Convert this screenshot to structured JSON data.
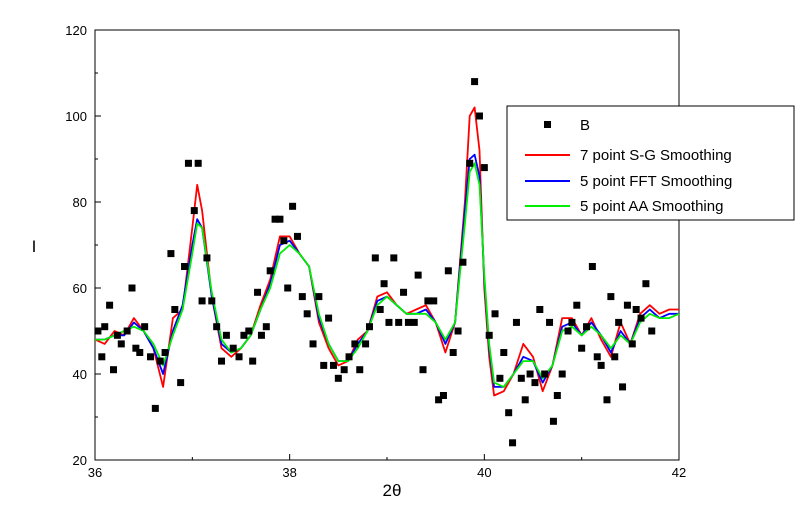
{
  "chart_data": {
    "type": "line",
    "title": "",
    "xlabel": "2θ",
    "ylabel": "I",
    "xlim": [
      36,
      42
    ],
    "ylim": [
      20,
      120
    ],
    "xticks": [
      36,
      38,
      40,
      42
    ],
    "yticks": [
      20,
      40,
      60,
      80,
      100,
      120
    ],
    "grid": false,
    "legend_position": "top-right",
    "scatter": {
      "name": "B",
      "color": "#000000",
      "marker": "square",
      "points": [
        [
          36.03,
          50
        ],
        [
          36.07,
          44
        ],
        [
          36.1,
          51
        ],
        [
          36.15,
          56
        ],
        [
          36.19,
          41
        ],
        [
          36.23,
          49
        ],
        [
          36.27,
          47
        ],
        [
          36.33,
          50
        ],
        [
          36.38,
          60
        ],
        [
          36.42,
          46
        ],
        [
          36.46,
          45
        ],
        [
          36.51,
          51
        ],
        [
          36.57,
          44
        ],
        [
          36.62,
          32
        ],
        [
          36.67,
          43
        ],
        [
          36.72,
          45
        ],
        [
          36.78,
          68
        ],
        [
          36.82,
          55
        ],
        [
          36.88,
          38
        ],
        [
          36.92,
          65
        ],
        [
          36.96,
          89
        ],
        [
          37.02,
          78
        ],
        [
          37.06,
          89
        ],
        [
          37.1,
          57
        ],
        [
          37.15,
          67
        ],
        [
          37.2,
          57
        ],
        [
          37.25,
          51
        ],
        [
          37.3,
          43
        ],
        [
          37.35,
          49
        ],
        [
          37.42,
          46
        ],
        [
          37.48,
          44
        ],
        [
          37.53,
          49
        ],
        [
          37.58,
          50
        ],
        [
          37.62,
          43
        ],
        [
          37.67,
          59
        ],
        [
          37.71,
          49
        ],
        [
          37.76,
          51
        ],
        [
          37.8,
          64
        ],
        [
          37.85,
          76
        ],
        [
          37.9,
          76
        ],
        [
          37.94,
          71
        ],
        [
          37.98,
          60
        ],
        [
          38.03,
          79
        ],
        [
          38.08,
          72
        ],
        [
          38.13,
          58
        ],
        [
          38.18,
          54
        ],
        [
          38.24,
          47
        ],
        [
          38.3,
          58
        ],
        [
          38.35,
          42
        ],
        [
          38.4,
          53
        ],
        [
          38.45,
          42
        ],
        [
          38.5,
          39
        ],
        [
          38.56,
          41
        ],
        [
          38.61,
          44
        ],
        [
          38.67,
          47
        ],
        [
          38.72,
          41
        ],
        [
          38.78,
          47
        ],
        [
          38.82,
          51
        ],
        [
          38.88,
          67
        ],
        [
          38.93,
          55
        ],
        [
          38.97,
          61
        ],
        [
          39.02,
          52
        ],
        [
          39.07,
          67
        ],
        [
          39.12,
          52
        ],
        [
          39.17,
          59
        ],
        [
          39.22,
          52
        ],
        [
          39.28,
          52
        ],
        [
          39.32,
          63
        ],
        [
          39.37,
          41
        ],
        [
          39.42,
          57
        ],
        [
          39.48,
          57
        ],
        [
          39.53,
          34
        ],
        [
          39.58,
          35
        ],
        [
          39.63,
          64
        ],
        [
          39.68,
          45
        ],
        [
          39.73,
          50
        ],
        [
          39.78,
          66
        ],
        [
          39.85,
          89
        ],
        [
          39.9,
          108
        ],
        [
          39.95,
          100
        ],
        [
          40.0,
          88
        ],
        [
          40.05,
          49
        ],
        [
          40.11,
          54
        ],
        [
          40.16,
          39
        ],
        [
          40.2,
          45
        ],
        [
          40.25,
          31
        ],
        [
          40.29,
          24
        ],
        [
          40.33,
          52
        ],
        [
          40.38,
          39
        ],
        [
          40.42,
          34
        ],
        [
          40.47,
          40
        ],
        [
          40.52,
          38
        ],
        [
          40.57,
          55
        ],
        [
          40.62,
          40
        ],
        [
          40.67,
          52
        ],
        [
          40.71,
          29
        ],
        [
          40.75,
          35
        ],
        [
          40.8,
          40
        ],
        [
          40.86,
          50
        ],
        [
          40.9,
          52
        ],
        [
          40.95,
          56
        ],
        [
          41.0,
          46
        ],
        [
          41.05,
          51
        ],
        [
          41.11,
          65
        ],
        [
          41.16,
          44
        ],
        [
          41.2,
          42
        ],
        [
          41.26,
          34
        ],
        [
          41.3,
          58
        ],
        [
          41.34,
          44
        ],
        [
          41.38,
          52
        ],
        [
          41.42,
          37
        ],
        [
          41.47,
          56
        ],
        [
          41.52,
          47
        ],
        [
          41.56,
          55
        ],
        [
          41.61,
          53
        ],
        [
          41.66,
          61
        ],
        [
          41.72,
          50
        ]
      ]
    },
    "series": [
      {
        "name": "7 point S-G Smoothing",
        "color": "#ff0000",
        "x": [
          36.0,
          36.1,
          36.2,
          36.3,
          36.4,
          36.5,
          36.6,
          36.7,
          36.8,
          36.9,
          37.0,
          37.05,
          37.1,
          37.2,
          37.3,
          37.4,
          37.5,
          37.6,
          37.7,
          37.8,
          37.9,
          38.0,
          38.1,
          38.2,
          38.3,
          38.4,
          38.5,
          38.6,
          38.7,
          38.8,
          38.9,
          39.0,
          39.1,
          39.2,
          39.3,
          39.4,
          39.5,
          39.6,
          39.7,
          39.8,
          39.85,
          39.9,
          39.95,
          40.0,
          40.05,
          40.1,
          40.2,
          40.3,
          40.4,
          40.5,
          40.6,
          40.7,
          40.8,
          40.9,
          41.0,
          41.1,
          41.2,
          41.3,
          41.4,
          41.5,
          41.6,
          41.7,
          41.8,
          41.9,
          42.0
        ],
        "y": [
          48,
          47,
          50,
          49,
          53,
          50,
          46,
          37,
          53,
          55,
          74,
          84,
          78,
          58,
          46,
          44,
          46,
          49,
          56,
          62,
          72,
          72,
          68,
          65,
          52,
          46,
          42,
          43,
          48,
          50,
          58,
          59,
          56,
          54,
          55,
          56,
          52,
          45,
          52,
          80,
          100,
          102,
          92,
          60,
          44,
          35,
          36,
          40,
          47,
          44,
          36,
          42,
          53,
          53,
          49,
          53,
          48,
          44,
          52,
          47,
          54,
          56,
          54,
          55,
          55
        ]
      },
      {
        "name": "5 point FFT Smoothing",
        "color": "#0000ff",
        "x": [
          36.0,
          36.1,
          36.2,
          36.3,
          36.4,
          36.5,
          36.6,
          36.7,
          36.8,
          36.9,
          37.0,
          37.05,
          37.1,
          37.2,
          37.3,
          37.4,
          37.5,
          37.6,
          37.7,
          37.8,
          37.9,
          38.0,
          38.1,
          38.2,
          38.3,
          38.4,
          38.5,
          38.6,
          38.7,
          38.8,
          38.9,
          39.0,
          39.1,
          39.2,
          39.3,
          39.4,
          39.5,
          39.6,
          39.7,
          39.8,
          39.85,
          39.9,
          39.95,
          40.0,
          40.05,
          40.1,
          40.2,
          40.3,
          40.4,
          40.5,
          40.6,
          40.7,
          40.8,
          40.9,
          41.0,
          41.1,
          41.2,
          41.3,
          41.4,
          41.5,
          41.6,
          41.7,
          41.8,
          41.9,
          42.0
        ],
        "y": [
          48,
          48,
          49,
          49,
          52,
          50,
          46,
          40,
          50,
          56,
          70,
          76,
          74,
          58,
          47,
          45,
          46,
          49,
          55,
          61,
          70,
          71,
          68,
          65,
          53,
          47,
          43,
          43,
          47,
          50,
          57,
          58,
          56,
          54,
          54,
          55,
          52,
          47,
          52,
          78,
          90,
          91,
          86,
          62,
          46,
          37,
          37,
          40,
          44,
          43,
          38,
          42,
          51,
          52,
          49,
          52,
          49,
          45,
          50,
          47,
          53,
          55,
          53,
          54,
          54
        ]
      },
      {
        "name": "5 point AA Smoothing",
        "color": "#00ee00",
        "x": [
          36.0,
          36.1,
          36.2,
          36.3,
          36.4,
          36.5,
          36.6,
          36.7,
          36.8,
          36.9,
          37.0,
          37.05,
          37.1,
          37.2,
          37.3,
          37.4,
          37.5,
          37.6,
          37.7,
          37.8,
          37.9,
          38.0,
          38.1,
          38.2,
          38.3,
          38.4,
          38.5,
          38.6,
          38.7,
          38.8,
          38.9,
          39.0,
          39.1,
          39.2,
          39.3,
          39.4,
          39.5,
          39.6,
          39.7,
          39.8,
          39.85,
          39.9,
          39.95,
          40.0,
          40.05,
          40.1,
          40.2,
          40.3,
          40.4,
          40.5,
          40.6,
          40.7,
          40.8,
          40.9,
          41.0,
          41.1,
          41.2,
          41.3,
          41.4,
          41.5,
          41.6,
          41.7,
          41.8,
          41.9,
          42.0
        ],
        "y": [
          48,
          48,
          49,
          50,
          51,
          50,
          47,
          42,
          49,
          55,
          68,
          75,
          74,
          59,
          48,
          45,
          46,
          49,
          55,
          60,
          68,
          70,
          68,
          65,
          54,
          47,
          43,
          43,
          46,
          50,
          56,
          58,
          56,
          54,
          54,
          54,
          52,
          48,
          52,
          75,
          87,
          89,
          84,
          63,
          47,
          38,
          37,
          40,
          43,
          43,
          39,
          42,
          50,
          51,
          49,
          51,
          49,
          46,
          49,
          47,
          52,
          54,
          53,
          53,
          54
        ]
      }
    ]
  }
}
